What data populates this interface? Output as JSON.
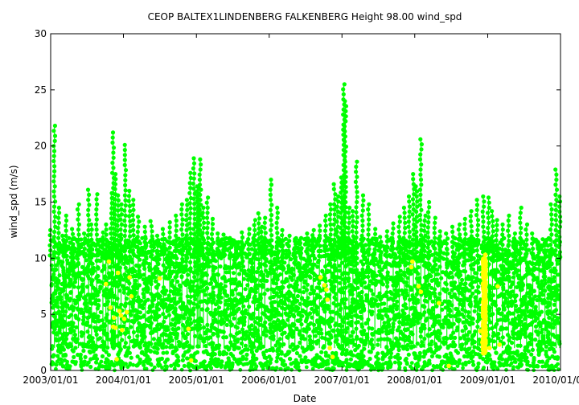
{
  "chart_data": {
    "type": "scatter",
    "title": "CEOP BALTEX1LINDENBERG FALKENBERG Height 98.00 wind_spd",
    "xlabel": "Date",
    "ylabel": "wind_spd (m/s)",
    "xlim": [
      "2003/01/01",
      "2010/01/01"
    ],
    "ylim": [
      0,
      30
    ],
    "yticks": [
      0,
      5,
      10,
      15,
      20,
      25,
      30
    ],
    "xticks": [
      "2003/01/01",
      "2004/01/01",
      "2005/01/01",
      "2006/01/01",
      "2007/01/01",
      "2008/01/01",
      "2009/01/01",
      "2010/01/01"
    ],
    "grid": false,
    "legend": "none",
    "series": [
      {
        "color": "#00ff00",
        "marker": "circle-with-lines",
        "x": [
          "2003/01/01",
          "2003/01/20",
          "2003/02/10",
          "2003/03/05",
          "2003/03/20",
          "2003/04/20",
          "2003/05/20",
          "2003/06/20",
          "2003/07/10",
          "2003/07/25",
          "2003/08/20",
          "2003/09/20",
          "2003/10/05",
          "2003/10/15",
          "2003/11/01",
          "2003/11/10",
          "2003/11/22",
          "2003/12/05",
          "2003/12/20",
          "2004/01/10",
          "2004/02/01",
          "2004/02/20",
          "2004/03/15",
          "2004/04/20",
          "2004/05/20",
          "2004/06/20",
          "2004/07/20",
          "2004/08/20",
          "2004/09/20",
          "2004/10/20",
          "2004/11/15",
          "2004/12/01",
          "2004/12/20",
          "2005/01/05",
          "2005/01/12",
          "2005/01/20",
          "2005/02/05",
          "2005/02/25",
          "2005/03/20",
          "2005/04/20",
          "2005/05/20",
          "2005/06/20",
          "2005/07/20",
          "2005/08/20",
          "2005/09/20",
          "2005/10/20",
          "2005/11/10",
          "2005/11/25",
          "2005/12/10",
          "2006/01/10",
          "2006/02/10",
          "2006/03/10",
          "2006/04/10",
          "2006/05/10",
          "2006/06/10",
          "2006/07/10",
          "2006/08/10",
          "2006/09/10",
          "2006/10/10",
          "2006/11/05",
          "2006/11/25",
          "2006/12/10",
          "2006/12/28",
          "2007/01/10",
          "2007/01/18",
          "2007/02/05",
          "2007/02/25",
          "2007/03/15",
          "2007/04/15",
          "2007/05/15",
          "2007/06/15",
          "2007/07/15",
          "2007/08/15",
          "2007/09/15",
          "2007/10/15",
          "2007/11/10",
          "2007/12/05",
          "2007/12/25",
          "2008/01/10",
          "2008/02/01",
          "2008/02/20",
          "2008/03/10",
          "2008/04/10",
          "2008/05/10",
          "2008/06/10",
          "2008/07/10",
          "2008/08/10",
          "2008/09/10",
          "2008/10/10",
          "2008/11/10",
          "2008/12/10",
          "2009/01/05",
          "2009/01/25",
          "2009/02/15",
          "2009/03/15",
          "2009/04/15",
          "2009/05/15",
          "2009/06/15",
          "2009/07/15",
          "2009/08/15",
          "2009/09/15",
          "2009/10/15",
          "2009/11/15",
          "2009/12/10",
          "2009/12/28"
        ],
        "y_max": [
          12.5,
          21.8,
          14.5,
          12.0,
          13.8,
          12.6,
          14.8,
          12.2,
          16.1,
          13.0,
          15.7,
          12.3,
          13.0,
          11.5,
          15.8,
          21.2,
          17.5,
          15.6,
          14.8,
          20.1,
          16.0,
          15.2,
          13.7,
          12.8,
          13.3,
          12.0,
          12.6,
          13.2,
          13.8,
          14.8,
          15.2,
          17.6,
          18.9,
          16.4,
          16.2,
          18.8,
          14.5,
          15.4,
          13.5,
          12.2,
          12.1,
          11.8,
          11.4,
          12.3,
          12.6,
          13.4,
          14.0,
          12.8,
          13.6,
          17.0,
          14.5,
          12.5,
          12.0,
          11.7,
          11.8,
          12.2,
          12.5,
          12.9,
          13.8,
          14.8,
          16.6,
          15.5,
          17.2,
          25.5,
          24.0,
          14.5,
          14.2,
          18.6,
          15.6,
          14.8,
          12.6,
          11.9,
          12.4,
          13.1,
          13.7,
          14.5,
          15.5,
          17.5,
          16.4,
          20.6,
          13.8,
          15.0,
          13.6,
          12.4,
          12.2,
          12.8,
          13.0,
          13.5,
          14.2,
          15.2,
          15.5,
          15.4,
          14.2,
          13.4,
          13.0,
          13.8,
          12.2,
          14.5,
          13.0,
          12.2,
          11.4,
          11.6,
          14.8,
          17.9,
          15.5
        ]
      },
      {
        "color": "#ffff00",
        "marker": "circle",
        "x": [
          "2003/10/05",
          "2003/10/20",
          "2003/10/28",
          "2003/11/10",
          "2003/11/15",
          "2003/11/22",
          "2003/11/28",
          "2003/12/05",
          "2003/12/12",
          "2003/12/20",
          "2003/12/25",
          "2004/01/05",
          "2004/01/18",
          "2004/02/01",
          "2004/02/10",
          "2004/07/01",
          "2004/11/22",
          "2004/12/05",
          "2006/09/15",
          "2006/10/05",
          "2006/10/15",
          "2006/10/20",
          "2006/11/01",
          "2006/11/15",
          "2007/12/15",
          "2007/12/20",
          "2008/01/20",
          "2008/02/01",
          "2008/05/01",
          "2008/06/20",
          "2008/11/25",
          "2008/12/05",
          "2008/12/20",
          "2009/01/10",
          "2009/02/20",
          "2009/03/01"
        ],
        "y": [
          7.7,
          9.7,
          5.6,
          3.9,
          4.7,
          3.8,
          1.0,
          8.7,
          5.3,
          4.9,
          3.6,
          4.6,
          5.2,
          8.3,
          6.6,
          8.2,
          3.7,
          0.9,
          8.3,
          7.6,
          7.2,
          6.3,
          2.0,
          1.2,
          9.2,
          9.7,
          7.5,
          7.0,
          6.0,
          0.4,
          3.5,
          2.5,
          10.3,
          2.0,
          7.5,
          2.3
        ],
        "band": {
          "x": [
            "2008/12/08",
            "2008/12/22"
          ],
          "y": [
            1.5,
            10.0
          ]
        }
      }
    ]
  }
}
